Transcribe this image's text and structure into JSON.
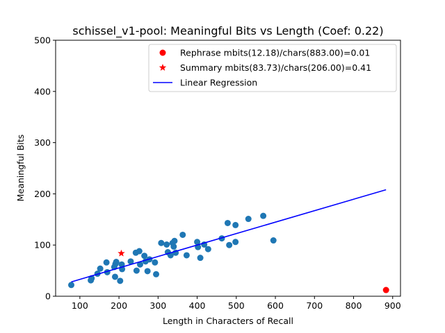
{
  "chart_data": {
    "type": "scatter",
    "title": "schissel_v1-pool: Meaningful Bits vs Length (Coef: 0.22)",
    "xlabel": "Length in Characters of Recall",
    "ylabel": "Meaningful Bits",
    "xlim": [
      38,
      920
    ],
    "ylim": [
      0,
      500
    ],
    "xticks": [
      100,
      200,
      300,
      400,
      500,
      600,
      700,
      800,
      900
    ],
    "yticks": [
      0,
      100,
      200,
      300,
      400,
      500
    ],
    "grid": false,
    "legend_position": "top-right",
    "series": [
      {
        "kind": "scatter",
        "color": "#1f77b4",
        "points": [
          [
            78,
            22
          ],
          [
            128,
            31
          ],
          [
            130,
            35
          ],
          [
            145,
            44
          ],
          [
            152,
            54
          ],
          [
            168,
            66
          ],
          [
            170,
            47
          ],
          [
            188,
            57
          ],
          [
            190,
            38
          ],
          [
            191,
            63
          ],
          [
            193,
            67
          ],
          [
            203,
            30
          ],
          [
            207,
            62
          ],
          [
            208,
            53
          ],
          [
            230,
            68
          ],
          [
            243,
            85
          ],
          [
            245,
            50
          ],
          [
            252,
            88
          ],
          [
            254,
            62
          ],
          [
            265,
            79
          ],
          [
            268,
            68
          ],
          [
            273,
            49
          ],
          [
            278,
            72
          ],
          [
            292,
            66
          ],
          [
            295,
            43
          ],
          [
            308,
            104
          ],
          [
            322,
            101
          ],
          [
            325,
            86
          ],
          [
            332,
            80
          ],
          [
            337,
            104
          ],
          [
            340,
            97
          ],
          [
            342,
            108
          ],
          [
            345,
            85
          ],
          [
            363,
            120
          ],
          [
            373,
            80
          ],
          [
            400,
            106
          ],
          [
            402,
            96
          ],
          [
            408,
            75
          ],
          [
            418,
            101
          ],
          [
            428,
            92
          ],
          [
            463,
            113
          ],
          [
            478,
            143
          ],
          [
            482,
            100
          ],
          [
            498,
            139
          ],
          [
            498,
            106
          ],
          [
            531,
            151
          ],
          [
            569,
            157
          ],
          [
            595,
            109
          ]
        ]
      },
      {
        "kind": "scatter",
        "name": "Rephrase mbits(12.18)/chars(883.00)=0.01",
        "color": "#ff0000",
        "marker": "circle",
        "points": [
          [
            883,
            12.18
          ]
        ]
      },
      {
        "kind": "scatter",
        "name": "Summary mbits(83.73)/chars(206.00)=0.41",
        "color": "#ff0000",
        "marker": "star",
        "points": [
          [
            206,
            83.73
          ]
        ]
      },
      {
        "kind": "line",
        "name": "Linear Regression",
        "color": "#0000ff",
        "points": [
          [
            78,
            28
          ],
          [
            883,
            208
          ]
        ]
      }
    ]
  }
}
